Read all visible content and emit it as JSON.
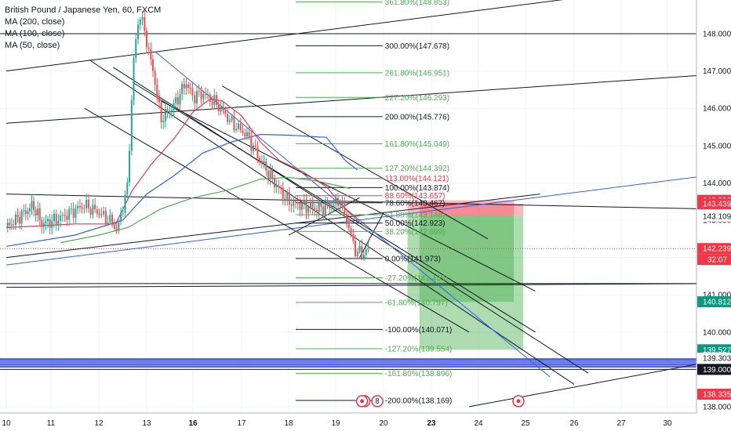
{
  "legend": {
    "title": "British Pound / Japanese Yen, 60, FXCM",
    "ma200": "MA (200, close)",
    "ma100": "MA (100, close)",
    "ma50": "MA (50, close)"
  },
  "colors": {
    "candle_up": "#26a69a",
    "candle_down": "#ef5350",
    "ma200": "#4caf50",
    "ma100": "#2962ff",
    "ma50": "#f23645",
    "fib_green": "#4caf50",
    "fib_red": "#f23645",
    "fib_black": "#131722",
    "band": "#3446e0",
    "profit_zone": "#4caf50",
    "stop_zone": "#f23645"
  },
  "chart_data": {
    "type": "line",
    "title": "British Pound / Japanese Yen, 60, FXCM",
    "ylim": [
      137.92,
      149.0
    ],
    "y_ticks": [
      138.0,
      139.0,
      140.0,
      141.0,
      142.0,
      143.0,
      144.0,
      145.0,
      146.0,
      147.0,
      148.0
    ],
    "y_tick_labels": [
      "138.000",
      "139.000",
      "140.000",
      "141.000",
      "142.000",
      "143.000",
      "144.000",
      "145.000",
      "146.000",
      "147.000",
      "148.000"
    ],
    "x_ticks": [
      {
        "label": "10",
        "t": 0,
        "bold": false
      },
      {
        "label": "11",
        "t": 1,
        "bold": false
      },
      {
        "label": "12",
        "t": 2,
        "bold": false
      },
      {
        "label": "13",
        "t": 3,
        "bold": false
      },
      {
        "label": "16",
        "t": 4,
        "bold": true
      },
      {
        "label": "17",
        "t": 5,
        "bold": false
      },
      {
        "label": "18",
        "t": 6,
        "bold": false
      },
      {
        "label": "19",
        "t": 7,
        "bold": false
      },
      {
        "label": "20",
        "t": 8,
        "bold": false
      },
      {
        "label": "23",
        "t": 9,
        "bold": true
      },
      {
        "label": "24",
        "t": 10,
        "bold": false
      },
      {
        "label": "25",
        "t": 11,
        "bold": false
      },
      {
        "label": "26",
        "t": 12,
        "bold": false
      },
      {
        "label": "27",
        "t": 13,
        "bold": false
      },
      {
        "label": "30",
        "t": 14,
        "bold": false
      }
    ],
    "series": [
      {
        "name": "MA (200, close)",
        "values": [
          [
            1.2,
            142.4
          ],
          [
            2.0,
            142.6
          ],
          [
            2.6,
            142.8
          ],
          [
            3.3,
            143.3
          ],
          [
            4.0,
            143.6
          ],
          [
            4.7,
            143.8
          ],
          [
            5.4,
            144.1
          ],
          [
            6.0,
            144.15
          ],
          [
            6.6,
            144.05
          ],
          [
            7.3,
            143.85
          ]
        ]
      },
      {
        "name": "MA (100, close)",
        "values": [
          [
            0.0,
            142.3
          ],
          [
            1.5,
            142.6
          ],
          [
            2.5,
            143.0
          ],
          [
            3.0,
            143.7
          ],
          [
            3.6,
            144.2
          ],
          [
            4.2,
            144.8
          ],
          [
            4.8,
            145.1
          ],
          [
            5.4,
            145.3
          ],
          [
            6.0,
            145.28
          ],
          [
            6.8,
            145.22
          ],
          [
            7.2,
            144.6
          ],
          [
            7.45,
            144.35
          ]
        ]
      },
      {
        "name": "MA (50, close)",
        "values": [
          [
            0.0,
            142.8
          ],
          [
            1.5,
            142.9
          ],
          [
            2.35,
            142.9
          ],
          [
            2.7,
            143.8
          ],
          [
            3.1,
            144.5
          ],
          [
            3.6,
            145.2
          ],
          [
            4.0,
            145.9
          ],
          [
            4.35,
            146.25
          ],
          [
            4.6,
            146.2
          ],
          [
            5.0,
            145.8
          ],
          [
            5.4,
            145.1
          ],
          [
            5.8,
            144.6
          ],
          [
            6.3,
            144.3
          ],
          [
            6.8,
            143.9
          ],
          [
            7.2,
            143.3
          ],
          [
            7.5,
            142.95
          ]
        ]
      }
    ],
    "price_path": [
      [
        0.0,
        142.8
      ],
      [
        0.3,
        143.1
      ],
      [
        0.6,
        143.4
      ],
      [
        0.8,
        142.9
      ],
      [
        1.1,
        143.0
      ],
      [
        1.4,
        143.2
      ],
      [
        1.7,
        143.4
      ],
      [
        2.0,
        143.2
      ],
      [
        2.3,
        142.9
      ],
      [
        2.38,
        142.7
      ],
      [
        2.6,
        143.9
      ],
      [
        2.72,
        147.2
      ],
      [
        2.85,
        148.6
      ],
      [
        3.0,
        147.8
      ],
      [
        3.2,
        146.6
      ],
      [
        3.3,
        145.7
      ],
      [
        3.6,
        146.1
      ],
      [
        3.85,
        146.7
      ],
      [
        4.0,
        146.3
      ],
      [
        4.2,
        146.4
      ],
      [
        4.5,
        146.1
      ],
      [
        4.8,
        145.6
      ],
      [
        5.1,
        145.3
      ],
      [
        5.4,
        144.6
      ],
      [
        5.7,
        144.0
      ],
      [
        6.0,
        143.5
      ],
      [
        6.3,
        143.4
      ],
      [
        6.6,
        143.3
      ],
      [
        6.9,
        143.4
      ],
      [
        7.1,
        143.5
      ],
      [
        7.25,
        142.9
      ],
      [
        7.4,
        142.2
      ],
      [
        7.55,
        142.1
      ],
      [
        7.7,
        142.2
      ]
    ],
    "fib_levels": [
      {
        "label": "361.80%(148.853)",
        "price": 148.853,
        "color": "green"
      },
      {
        "label": "300.00%(147.678)",
        "price": 147.678,
        "color": "black"
      },
      {
        "label": "261.80%(146.951)",
        "price": 146.951,
        "color": "green"
      },
      {
        "label": "227.20%(146.293)",
        "price": 146.293,
        "color": "green"
      },
      {
        "label": "200.00%(145.776)",
        "price": 145.776,
        "color": "black"
      },
      {
        "label": "161.80%(145.049)",
        "price": 145.049,
        "color": "green"
      },
      {
        "label": "127.20%(144.392)",
        "price": 144.392,
        "color": "green"
      },
      {
        "label": "113.00%(144.121)",
        "price": 144.121,
        "color": "red"
      },
      {
        "label": "100.00%(143.874)",
        "price": 143.874,
        "color": "black"
      },
      {
        "label": "88.60%(143.657)",
        "price": 143.657,
        "color": "red"
      },
      {
        "label": "78.60%(143.467)",
        "price": 143.467,
        "color": "black"
      },
      {
        "label": "61.80%(143.148)",
        "price": 143.148,
        "color": "green"
      },
      {
        "label": "50.00%(142.923)",
        "price": 142.923,
        "color": "black"
      },
      {
        "label": "38.20%(142.699)",
        "price": 142.699,
        "color": "green"
      },
      {
        "label": "0.00%(141.973)",
        "price": 141.973,
        "color": "black"
      },
      {
        "label": "-27.20%(141.455)",
        "price": 141.455,
        "color": "green"
      },
      {
        "label": "-61.80%(140.797)",
        "price": 140.797,
        "color": "green"
      },
      {
        "label": "-100.00%(140.071)",
        "price": 140.071,
        "color": "black"
      },
      {
        "label": "-127.20%(139.554)",
        "price": 139.554,
        "color": "green"
      },
      {
        "label": "-161.80%(138.896)",
        "price": 138.896,
        "color": "green"
      },
      {
        "label": "-200.00%(138.169)",
        "price": 138.169,
        "color": "black"
      }
    ],
    "price_labels": [
      {
        "text": "143.533",
        "price": 143.533,
        "bg": "#f23645",
        "fg": "#ffffff"
      },
      {
        "text": "143.439",
        "price": 143.439,
        "bg": "#f23645",
        "fg": "#ffffff"
      },
      {
        "text": "143.139",
        "price": 143.139,
        "bg": "#ffffff",
        "fg": "#131722"
      },
      {
        "text": "143.109",
        "price": 143.109,
        "bg": "#ffffff",
        "fg": "#131722"
      },
      {
        "text": "142.239",
        "price": 142.239,
        "bg": "#f23645",
        "fg": "#ffffff"
      },
      {
        "text": "140.812",
        "price": 140.812,
        "bg": "#089981",
        "fg": "#ffffff"
      },
      {
        "text": "139.527",
        "price": 139.527,
        "bg": "#089981",
        "fg": "#ffffff"
      },
      {
        "text": "139.303",
        "price": 139.303,
        "bg": "#ffffff",
        "fg": "#131722"
      },
      {
        "text": "139.000",
        "price": 139.0,
        "bg": "#131722",
        "fg": "#ffffff"
      },
      {
        "text": "138.335",
        "price": 138.335,
        "bg": "#f23645",
        "fg": "#ffffff"
      }
    ],
    "countdown": "32:07",
    "current_price": 142.239,
    "horizontal_lines": [
      148.0,
      141.3,
      139.0
    ],
    "blue_band": [
      139.05,
      139.3
    ],
    "positions": [
      {
        "t0": 8.5,
        "t1": 10.75,
        "entry": 143.139,
        "stop": 143.533,
        "target": 140.812
      },
      {
        "t0": 8.75,
        "t1": 10.95,
        "entry": 143.109,
        "stop": 143.439,
        "target": 139.527
      }
    ],
    "event_markers": [
      "9",
      "8"
    ]
  }
}
